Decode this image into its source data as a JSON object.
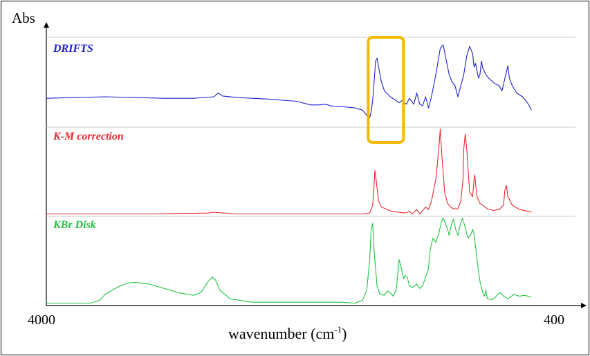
{
  "chart_data": {
    "type": "line",
    "ylabel": "Abs",
    "xlabel_main": "wavenumber (cm",
    "xlabel_exp": "-1",
    "xlabel_close": ")",
    "x_ticks": [
      "4000",
      "400"
    ],
    "xlim": [
      4000,
      400
    ],
    "highlight": {
      "x_range": [
        1810,
        1570
      ],
      "color": "#f5b800"
    },
    "series": [
      {
        "name": "DRIFTS",
        "color": "#1f1fcf",
        "ylim": [
          -0.1,
          1.1
        ],
        "points": [
          [
            4000,
            0.28
          ],
          [
            3800,
            0.29
          ],
          [
            3600,
            0.3
          ],
          [
            3400,
            0.29
          ],
          [
            3200,
            0.28
          ],
          [
            3000,
            0.28
          ],
          [
            2860,
            0.3
          ],
          [
            2830,
            0.35
          ],
          [
            2800,
            0.31
          ],
          [
            2700,
            0.29
          ],
          [
            2500,
            0.27
          ],
          [
            2300,
            0.24
          ],
          [
            2200,
            0.19
          ],
          [
            2150,
            0.19
          ],
          [
            2100,
            0.2
          ],
          [
            2050,
            0.17
          ],
          [
            2000,
            0.17
          ],
          [
            1900,
            0.15
          ],
          [
            1850,
            0.12
          ],
          [
            1820,
            0.05
          ],
          [
            1800,
            0.02
          ],
          [
            1790,
            0.1
          ],
          [
            1780,
            0.25
          ],
          [
            1770,
            0.5
          ],
          [
            1760,
            0.78
          ],
          [
            1750,
            0.82
          ],
          [
            1740,
            0.7
          ],
          [
            1720,
            0.5
          ],
          [
            1700,
            0.38
          ],
          [
            1660,
            0.3
          ],
          [
            1600,
            0.22
          ],
          [
            1580,
            0.25
          ],
          [
            1550,
            0.2
          ],
          [
            1530,
            0.28
          ],
          [
            1500,
            0.2
          ],
          [
            1480,
            0.35
          ],
          [
            1460,
            0.2
          ],
          [
            1440,
            0.18
          ],
          [
            1420,
            0.3
          ],
          [
            1400,
            0.15
          ],
          [
            1380,
            0.3
          ],
          [
            1350,
            0.6
          ],
          [
            1320,
            0.95
          ],
          [
            1300,
            1.0
          ],
          [
            1280,
            0.8
          ],
          [
            1260,
            0.6
          ],
          [
            1250,
            0.55
          ],
          [
            1240,
            0.5
          ],
          [
            1220,
            0.45
          ],
          [
            1200,
            0.3
          ],
          [
            1180,
            0.45
          ],
          [
            1160,
            0.6
          ],
          [
            1140,
            0.85
          ],
          [
            1120,
            0.98
          ],
          [
            1100,
            0.88
          ],
          [
            1090,
            0.7
          ],
          [
            1080,
            0.75
          ],
          [
            1070,
            0.65
          ],
          [
            1060,
            0.55
          ],
          [
            1050,
            0.6
          ],
          [
            1040,
            0.78
          ],
          [
            1030,
            0.68
          ],
          [
            1010,
            0.6
          ],
          [
            990,
            0.55
          ],
          [
            950,
            0.48
          ],
          [
            920,
            0.45
          ],
          [
            900,
            0.38
          ],
          [
            880,
            0.55
          ],
          [
            860,
            0.72
          ],
          [
            850,
            0.55
          ],
          [
            830,
            0.45
          ],
          [
            800,
            0.35
          ],
          [
            760,
            0.3
          ],
          [
            720,
            0.2
          ],
          [
            700,
            0.12
          ]
        ]
      },
      {
        "name": "K-M correction",
        "color": "#e8272c",
        "ylim": [
          -0.02,
          1.0
        ],
        "points": [
          [
            4000,
            0.0
          ],
          [
            3600,
            0.0
          ],
          [
            3300,
            0.0
          ],
          [
            2900,
            0.01
          ],
          [
            2860,
            0.02
          ],
          [
            2830,
            0.015
          ],
          [
            2700,
            0.0
          ],
          [
            2300,
            0.0
          ],
          [
            2000,
            0.0
          ],
          [
            1850,
            0.0
          ],
          [
            1800,
            0.01
          ],
          [
            1780,
            0.1
          ],
          [
            1770,
            0.35
          ],
          [
            1765,
            0.5
          ],
          [
            1760,
            0.45
          ],
          [
            1750,
            0.3
          ],
          [
            1740,
            0.15
          ],
          [
            1720,
            0.08
          ],
          [
            1650,
            0.03
          ],
          [
            1560,
            0.01
          ],
          [
            1530,
            0.03
          ],
          [
            1510,
            0.0
          ],
          [
            1480,
            0.05
          ],
          [
            1460,
            0.0
          ],
          [
            1420,
            0.08
          ],
          [
            1400,
            0.05
          ],
          [
            1380,
            0.15
          ],
          [
            1350,
            0.4
          ],
          [
            1330,
            0.75
          ],
          [
            1320,
            0.98
          ],
          [
            1310,
            0.7
          ],
          [
            1290,
            0.25
          ],
          [
            1270,
            0.12
          ],
          [
            1250,
            0.08
          ],
          [
            1230,
            0.06
          ],
          [
            1200,
            0.06
          ],
          [
            1180,
            0.15
          ],
          [
            1165,
            0.4
          ],
          [
            1160,
            0.75
          ],
          [
            1150,
            0.92
          ],
          [
            1140,
            0.75
          ],
          [
            1120,
            0.25
          ],
          [
            1100,
            0.2
          ],
          [
            1090,
            0.4
          ],
          [
            1085,
            0.45
          ],
          [
            1080,
            0.35
          ],
          [
            1070,
            0.2
          ],
          [
            1050,
            0.12
          ],
          [
            1030,
            0.1
          ],
          [
            1000,
            0.06
          ],
          [
            960,
            0.04
          ],
          [
            920,
            0.05
          ],
          [
            890,
            0.1
          ],
          [
            880,
            0.28
          ],
          [
            870,
            0.33
          ],
          [
            860,
            0.2
          ],
          [
            830,
            0.1
          ],
          [
            780,
            0.05
          ],
          [
            720,
            0.03
          ],
          [
            700,
            0.02
          ]
        ]
      },
      {
        "name": "KBr Disk",
        "color": "#20c440",
        "ylim": [
          -0.02,
          1.0
        ],
        "points": [
          [
            4000,
            0.0
          ],
          [
            3700,
            0.0
          ],
          [
            3640,
            0.03
          ],
          [
            3600,
            0.1
          ],
          [
            3520,
            0.18
          ],
          [
            3450,
            0.23
          ],
          [
            3400,
            0.24
          ],
          [
            3300,
            0.22
          ],
          [
            3200,
            0.17
          ],
          [
            3100,
            0.12
          ],
          [
            3000,
            0.09
          ],
          [
            2950,
            0.12
          ],
          [
            2900,
            0.25
          ],
          [
            2870,
            0.3
          ],
          [
            2850,
            0.27
          ],
          [
            2820,
            0.15
          ],
          [
            2750,
            0.05
          ],
          [
            2600,
            0.01
          ],
          [
            2400,
            0.01
          ],
          [
            2200,
            0.01
          ],
          [
            2000,
            0.01
          ],
          [
            1900,
            0.0
          ],
          [
            1850,
            0.03
          ],
          [
            1820,
            0.15
          ],
          [
            1800,
            0.5
          ],
          [
            1790,
            0.85
          ],
          [
            1780,
            0.92
          ],
          [
            1770,
            0.6
          ],
          [
            1750,
            0.2
          ],
          [
            1730,
            0.1
          ],
          [
            1700,
            0.09
          ],
          [
            1680,
            0.14
          ],
          [
            1660,
            0.12
          ],
          [
            1640,
            0.08
          ],
          [
            1620,
            0.15
          ],
          [
            1600,
            0.5
          ],
          [
            1590,
            0.44
          ],
          [
            1570,
            0.28
          ],
          [
            1560,
            0.32
          ],
          [
            1545,
            0.3
          ],
          [
            1530,
            0.2
          ],
          [
            1510,
            0.18
          ],
          [
            1480,
            0.22
          ],
          [
            1460,
            0.17
          ],
          [
            1440,
            0.2
          ],
          [
            1420,
            0.3
          ],
          [
            1400,
            0.4
          ],
          [
            1390,
            0.6
          ],
          [
            1370,
            0.75
          ],
          [
            1350,
            0.7
          ],
          [
            1330,
            0.8
          ],
          [
            1310,
            0.95
          ],
          [
            1300,
            0.98
          ],
          [
            1285,
            0.92
          ],
          [
            1270,
            0.85
          ],
          [
            1260,
            0.78
          ],
          [
            1245,
            0.9
          ],
          [
            1230,
            0.97
          ],
          [
            1215,
            0.85
          ],
          [
            1200,
            0.78
          ],
          [
            1185,
            0.9
          ],
          [
            1170,
            0.98
          ],
          [
            1155,
            0.9
          ],
          [
            1140,
            0.8
          ],
          [
            1130,
            0.75
          ],
          [
            1110,
            0.8
          ],
          [
            1100,
            0.85
          ],
          [
            1090,
            0.8
          ],
          [
            1070,
            0.5
          ],
          [
            1050,
            0.25
          ],
          [
            1030,
            0.12
          ],
          [
            1020,
            0.08
          ],
          [
            1010,
            0.15
          ],
          [
            1000,
            0.05
          ],
          [
            970,
            0.04
          ],
          [
            950,
            0.06
          ],
          [
            930,
            0.1
          ],
          [
            910,
            0.12
          ],
          [
            890,
            0.08
          ],
          [
            860,
            0.05
          ],
          [
            820,
            0.1
          ],
          [
            780,
            0.08
          ],
          [
            750,
            0.09
          ],
          [
            720,
            0.08
          ],
          [
            700,
            0.07
          ]
        ]
      }
    ]
  },
  "labels": {
    "ylabel": "Abs",
    "tick_left": "4000",
    "tick_right": "400",
    "series": [
      "DRIFTS",
      "K-M correction",
      "KBr Disk"
    ]
  }
}
